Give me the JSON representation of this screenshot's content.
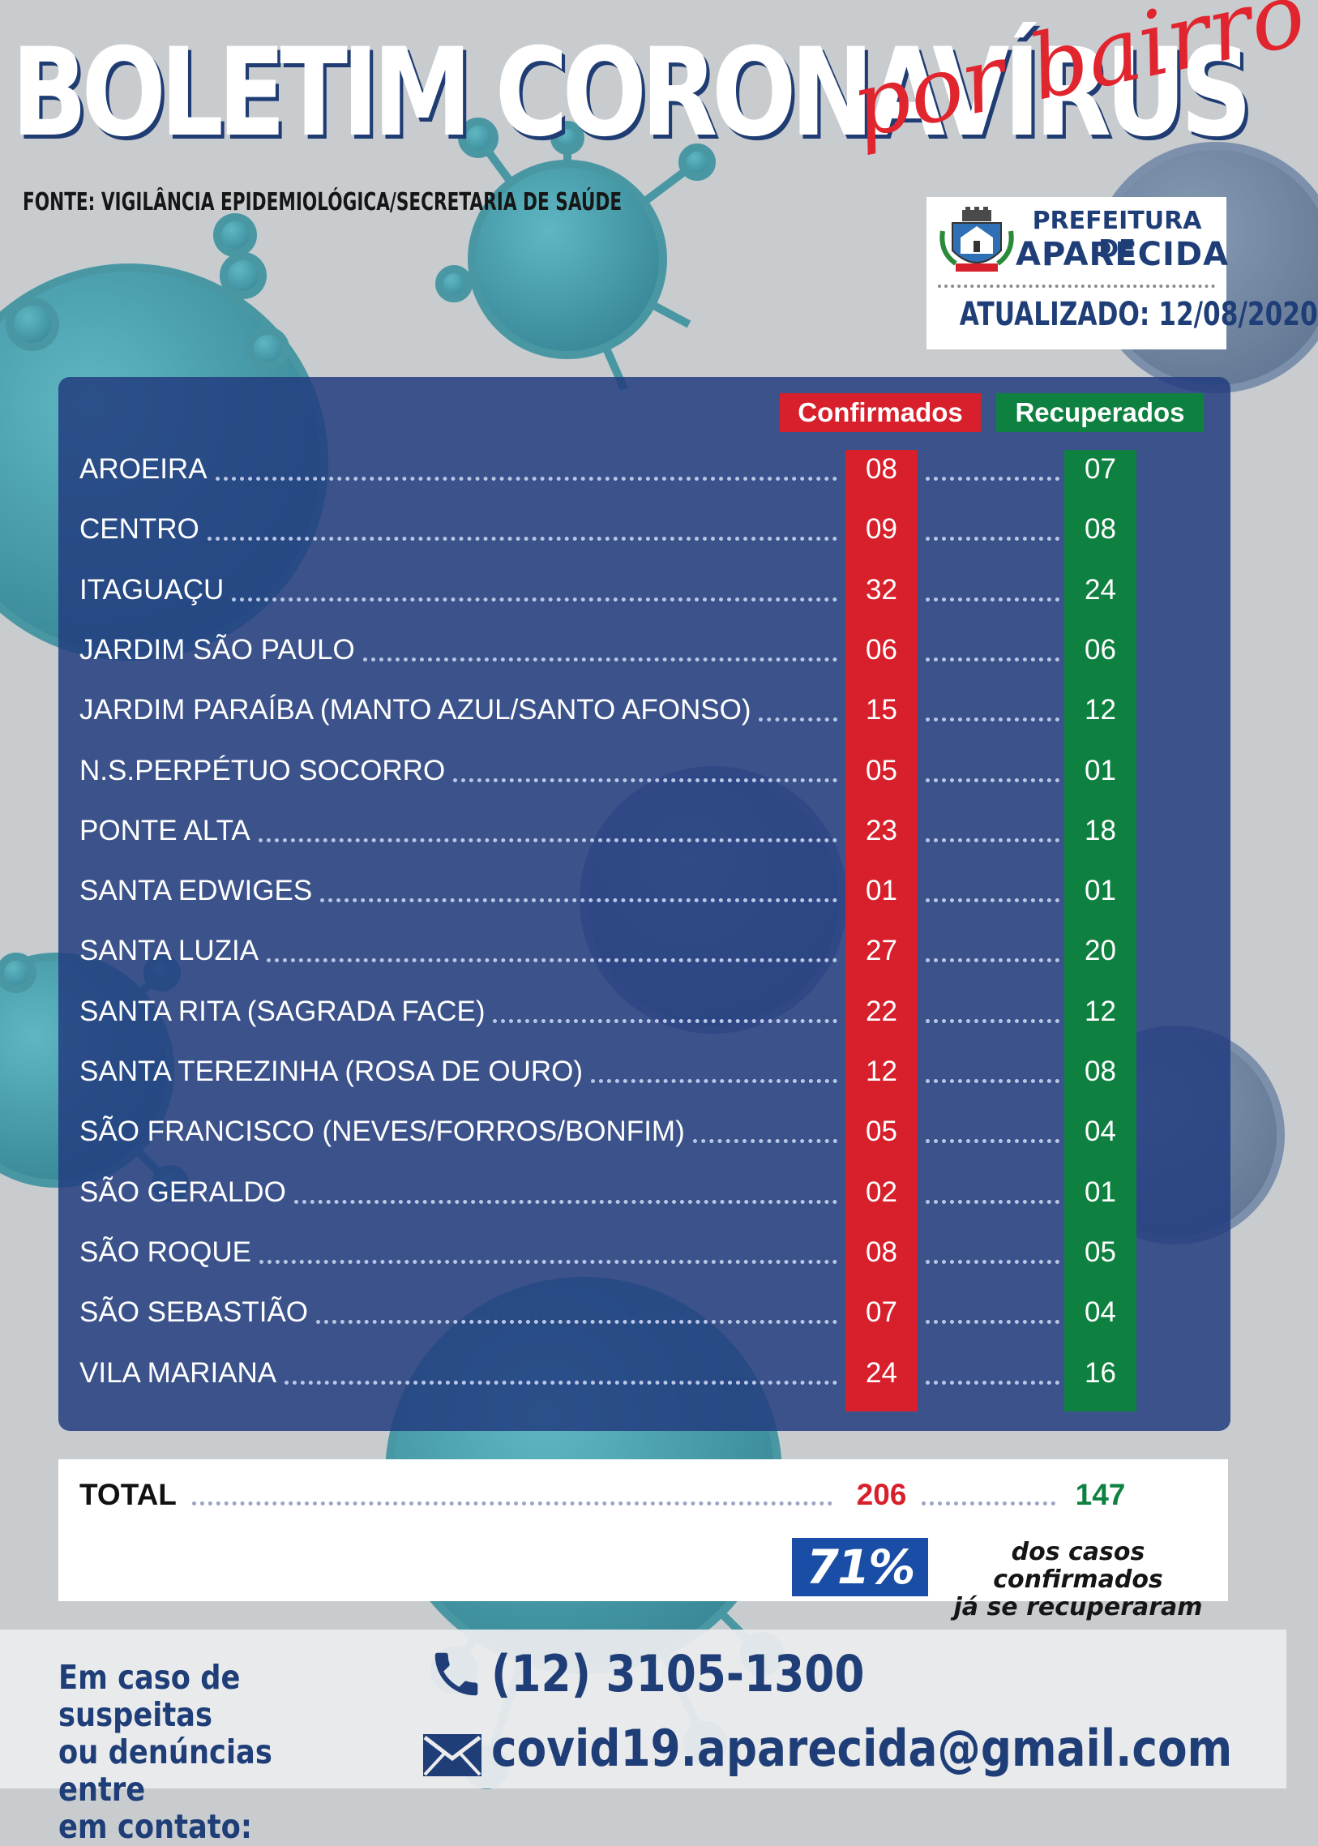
{
  "header": {
    "title": "BOLETIM CORONAVÍRUS",
    "subtitle": "por bairro",
    "source": "FONTE: VIGILÂNCIA EPIDEMIOLÓGICA/SECRETARIA DE SAÚDE"
  },
  "logo": {
    "line1": "PREFEITURA DE",
    "line2": "APARECIDA",
    "updated": "ATUALIZADO: 12/08/2020"
  },
  "table": {
    "col_confirmed": "Confirmados",
    "col_recovered": "Recuperados",
    "rows": [
      {
        "name": "AROEIRA",
        "confirmed": "08",
        "recovered": "07"
      },
      {
        "name": "CENTRO",
        "confirmed": "09",
        "recovered": "08"
      },
      {
        "name": "ITAGUAÇU",
        "confirmed": "32",
        "recovered": "24"
      },
      {
        "name": "JARDIM SÃO PAULO",
        "confirmed": "06",
        "recovered": "06"
      },
      {
        "name": "JARDIM PARAÍBA (MANTO AZUL/SANTO AFONSO)",
        "confirmed": "15",
        "recovered": "12"
      },
      {
        "name": "N.S.PERPÉTUO SOCORRO",
        "confirmed": "05",
        "recovered": "01"
      },
      {
        "name": "PONTE ALTA",
        "confirmed": "23",
        "recovered": "18"
      },
      {
        "name": "SANTA EDWIGES",
        "confirmed": "01",
        "recovered": "01"
      },
      {
        "name": "SANTA LUZIA",
        "confirmed": "27",
        "recovered": "20"
      },
      {
        "name": "SANTA RITA (SAGRADA FACE)",
        "confirmed": "22",
        "recovered": "12"
      },
      {
        "name": "SANTA TEREZINHA (ROSA DE OURO)",
        "confirmed": "12",
        "recovered": "08"
      },
      {
        "name": "SÃO FRANCISCO (NEVES/FORROS/BONFIM)",
        "confirmed": "05",
        "recovered": "04"
      },
      {
        "name": "SÃO GERALDO",
        "confirmed": "02",
        "recovered": "01"
      },
      {
        "name": "SÃO ROQUE",
        "confirmed": "08",
        "recovered": "05"
      },
      {
        "name": "SÃO SEBASTIÃO",
        "confirmed": "07",
        "recovered": "04"
      },
      {
        "name": "VILA MARIANA",
        "confirmed": "24",
        "recovered": "16"
      }
    ]
  },
  "total": {
    "label": "TOTAL",
    "confirmed": "206",
    "recovered": "147",
    "percent": "71%",
    "percent_text_line1": "dos casos confirmados",
    "percent_text_line2": "já se recuperaram"
  },
  "contact": {
    "lead_line1": "Em caso de suspeitas",
    "lead_line2": "ou denúncias entre",
    "lead_line3": "em contato:",
    "phone": "(12) 3105-1300",
    "email": "covid19.aparecida@gmail.com"
  },
  "colors": {
    "panel": "#233e80",
    "confirmed": "#d7202b",
    "recovered": "#0e8140",
    "brand_blue": "#1f3e78"
  },
  "icons": {
    "background": "virus-particles-illustration",
    "crest": "municipal-crest-icon",
    "phone": "phone-icon",
    "email": "envelope-icon"
  }
}
